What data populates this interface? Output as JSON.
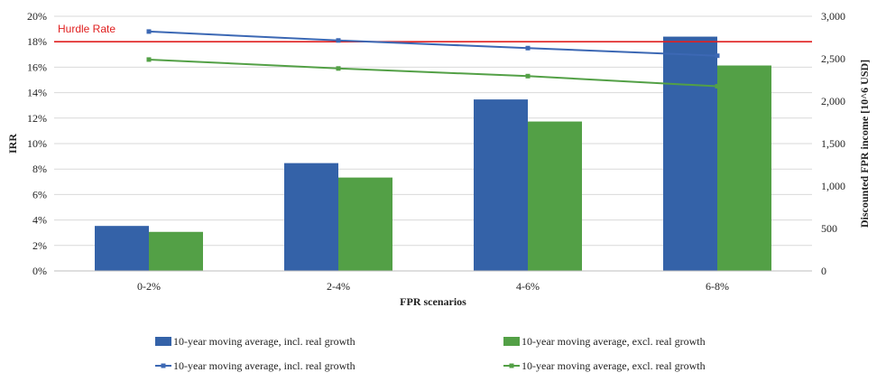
{
  "chart_data": {
    "type": "bar",
    "title": "",
    "xlabel": "FPR scenarios",
    "ylabel_left": "IRR",
    "ylabel_right": "Discounted FPR income [10^6 USD]",
    "categories": [
      "0-2%",
      "2-4%",
      "4-6%",
      "6-8%"
    ],
    "left_axis": {
      "min": 0,
      "max": 20,
      "step": 2,
      "ticks": [
        "0%",
        "2%",
        "4%",
        "6%",
        "8%",
        "10%",
        "12%",
        "14%",
        "16%",
        "18%",
        "20%"
      ]
    },
    "right_axis": {
      "min": 0,
      "max": 3000,
      "step": 500,
      "ticks": [
        "0",
        "500",
        "1,000",
        "1,500",
        "2,000",
        "2,500",
        "3,000"
      ]
    },
    "bar_series": [
      {
        "name": "10-year moving average, incl. real growth",
        "color": "#3462a8",
        "axis": "right",
        "values": [
          530,
          1270,
          2020,
          2760
        ]
      },
      {
        "name": "10-year moving average, excl. real growth",
        "color": "#53a046",
        "axis": "right",
        "values": [
          460,
          1100,
          1760,
          2420
        ]
      }
    ],
    "line_series": [
      {
        "name": "10-year moving average, incl. real growth",
        "color": "#3c68b4",
        "axis": "left",
        "values": [
          18.8,
          18.1,
          17.5,
          16.9
        ]
      },
      {
        "name": "10-year moving average, excl. real growth",
        "color": "#53a046",
        "axis": "left",
        "values": [
          16.6,
          15.9,
          15.3,
          14.5
        ]
      }
    ],
    "reference_line": {
      "label": "Hurdle Rate",
      "value": 18,
      "axis": "left",
      "color": "#e02020"
    },
    "grid": true,
    "legend_position": "bottom"
  }
}
